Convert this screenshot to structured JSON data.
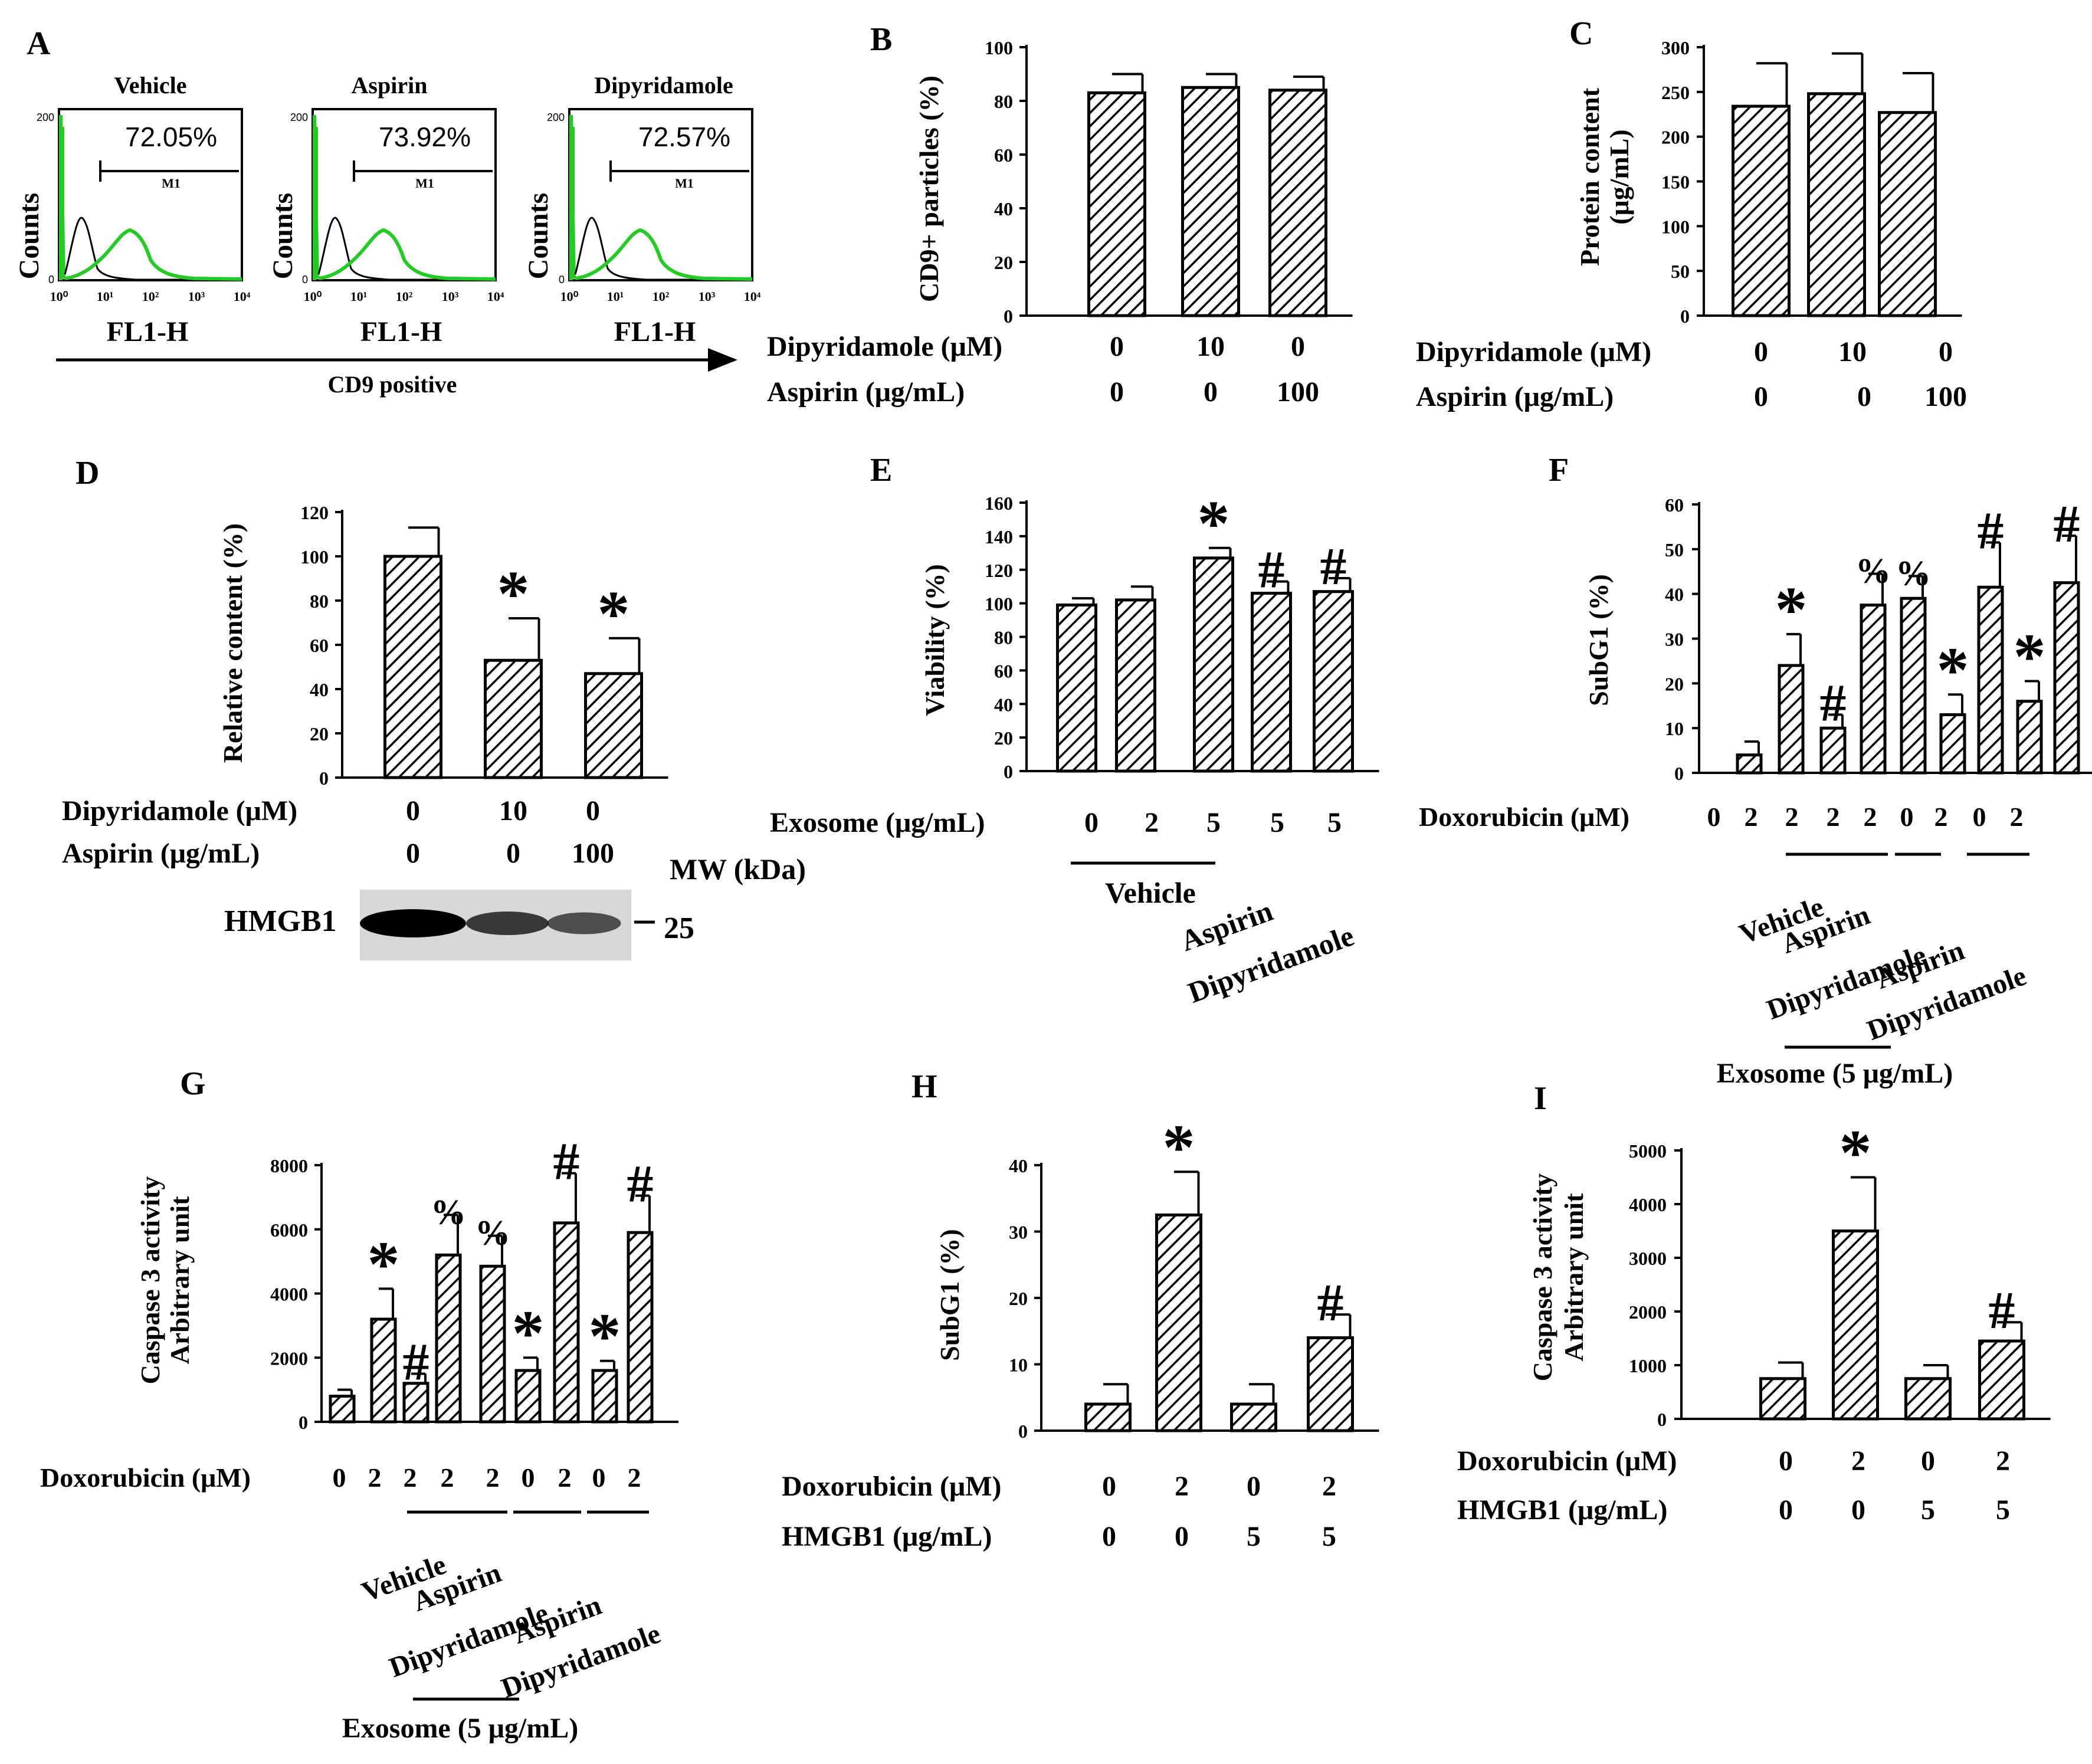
{
  "chart_data": [
    {
      "panel": "A",
      "type": "histogram",
      "xlabel": "FL1-H",
      "ylabel": "Counts",
      "x_ticks": [
        "10⁰",
        "10¹",
        "10²",
        "10³",
        "10⁴"
      ],
      "y_ticks": [
        "0",
        "200"
      ],
      "gate_label": "M1",
      "subpanels": [
        {
          "title": "Vehicle",
          "percent": "72.05%",
          "gate_start": 0.8
        },
        {
          "title": "Aspirin",
          "percent": "73.92%",
          "gate_start": 0.8
        },
        {
          "title": "Dipyridamole",
          "percent": "72.57%",
          "gate_start": 0.8
        }
      ],
      "arrow_label": "CD9 positive",
      "series_colors": [
        "#000000",
        "#22cc22"
      ]
    },
    {
      "panel": "B",
      "type": "bar",
      "ylabel": "CD9+ particles (%)",
      "ylim": [
        0,
        100
      ],
      "y_ticks": [
        "0",
        "20",
        "40",
        "60",
        "80",
        "100"
      ],
      "values": [
        83,
        85,
        84
      ],
      "errors": [
        7,
        5,
        5
      ],
      "annotations": [
        "",
        "",
        ""
      ],
      "conditions": [
        {
          "label": "Dipyridamole (μM)",
          "values": [
            "0",
            "10",
            "0"
          ]
        },
        {
          "label": "Aspirin (μg/mL)",
          "values": [
            "0",
            "0",
            "100"
          ]
        }
      ]
    },
    {
      "panel": "C",
      "type": "bar",
      "ylabel": [
        "Protein content",
        "(μg/mL)"
      ],
      "ylim": [
        0,
        300
      ],
      "y_ticks": [
        "0",
        "50",
        "100",
        "150",
        "200",
        "250",
        "300"
      ],
      "values": [
        234,
        248,
        227
      ],
      "errors": [
        48,
        45,
        44
      ],
      "annotations": [
        "",
        "",
        ""
      ],
      "conditions": [
        {
          "label": "Dipyridamole (μM)",
          "values": [
            "0",
            "10",
            "0"
          ]
        },
        {
          "label": "Aspirin (μg/mL)",
          "values": [
            "0",
            "0",
            "100"
          ]
        }
      ]
    },
    {
      "panel": "D",
      "type": "bar",
      "ylabel": "Relative content (%)",
      "ylim": [
        0,
        120
      ],
      "y_ticks": [
        "0",
        "20",
        "40",
        "60",
        "80",
        "100",
        "120"
      ],
      "values": [
        100,
        53,
        47
      ],
      "errors": [
        13,
        19,
        16
      ],
      "annotations": [
        "",
        "*",
        "*"
      ],
      "conditions": [
        {
          "label": "Dipyridamole (μM)",
          "values": [
            "0",
            "10",
            "0"
          ]
        },
        {
          "label": "Aspirin (μg/mL)",
          "values": [
            "0",
            "0",
            "100"
          ]
        }
      ],
      "blot": {
        "label": "HMGB1",
        "mw_header": "MW (kDa)",
        "mw_marker": "25",
        "band_intensity": [
          1.0,
          0.6,
          0.45
        ]
      }
    },
    {
      "panel": "E",
      "type": "bar",
      "ylabel": "Viability (%)",
      "ylim": [
        0,
        160
      ],
      "y_ticks": [
        "0",
        "20",
        "40",
        "60",
        "80",
        "100",
        "120",
        "140",
        "160"
      ],
      "values": [
        99,
        102,
        127,
        106,
        107
      ],
      "errors": [
        4,
        8,
        6,
        7,
        8
      ],
      "annotations": [
        "",
        "",
        "*",
        "#",
        "#"
      ],
      "conditions": [
        {
          "label": "Exosome (μg/mL)",
          "values": [
            "0",
            "2",
            "5",
            "5",
            "5"
          ]
        }
      ],
      "group_labels": [
        "Vehicle",
        "Aspirin",
        "Dipyridamole"
      ]
    },
    {
      "panel": "F",
      "type": "bar",
      "ylabel": "SubG1 (%)",
      "ylim": [
        0,
        60
      ],
      "y_ticks": [
        "0",
        "10",
        "20",
        "30",
        "40",
        "50",
        "60"
      ],
      "values": [
        4,
        24,
        10,
        37.5,
        39,
        13,
        41.5,
        16,
        42.5
      ],
      "errors": [
        3,
        7,
        3,
        7,
        5,
        4.5,
        10,
        4.5,
        10.5
      ],
      "annotations": [
        "",
        "*",
        "#",
        "%",
        "%",
        "*",
        "#",
        "*",
        "#"
      ],
      "conditions": [
        {
          "label": "Doxorubicin (μM)",
          "values": [
            "0",
            "2",
            "2",
            "2",
            "2",
            "0",
            "2",
            "0",
            "2"
          ]
        }
      ],
      "group_labels": [
        "Vehicle",
        "Aspirin",
        "Dipyridamole",
        "Aspirin",
        "Dipyridamole"
      ],
      "exosome_label": "Exosome (5 μg/mL)"
    },
    {
      "panel": "G",
      "type": "bar",
      "ylabel": [
        "Caspase 3 activity",
        "Arbitrary unit"
      ],
      "ylim": [
        0,
        8000
      ],
      "y_ticks": [
        "0",
        "2000",
        "4000",
        "6000",
        "8000"
      ],
      "values": [
        800,
        3200,
        1200,
        5200,
        4850,
        1600,
        6200,
        1600,
        5900
      ],
      "errors": [
        200,
        950,
        300,
        1250,
        950,
        400,
        1550,
        300,
        1150
      ],
      "annotations": [
        "",
        "*",
        "#",
        "%",
        "%",
        "*",
        "#",
        "*",
        "#"
      ],
      "conditions": [
        {
          "label": "Doxorubicin (μM)",
          "values": [
            "0",
            "2",
            "2",
            "2",
            "2",
            "0",
            "2",
            "0",
            "2"
          ]
        }
      ],
      "group_labels": [
        "Vehicle",
        "Aspirin",
        "Dipyridamole",
        "Aspirin",
        "Dipyridamole"
      ],
      "exosome_label": "Exosome (5 μg/mL)"
    },
    {
      "panel": "H",
      "type": "bar",
      "ylabel": "SubG1 (%)",
      "ylim": [
        0,
        40
      ],
      "y_ticks": [
        "0",
        "10",
        "20",
        "30",
        "40"
      ],
      "values": [
        4,
        32.5,
        4,
        14
      ],
      "errors": [
        3,
        6.5,
        3,
        3.5
      ],
      "annotations": [
        "",
        "*",
        "",
        "#"
      ],
      "conditions": [
        {
          "label": "Doxorubicin (μM)",
          "values": [
            "0",
            "2",
            "0",
            "2"
          ]
        },
        {
          "label": "HMGB1 (μg/mL)",
          "values": [
            "0",
            "0",
            "5",
            "5"
          ]
        }
      ]
    },
    {
      "panel": "I",
      "type": "bar",
      "ylabel": [
        "Caspase 3 activity",
        "Arbitrary unit"
      ],
      "ylim": [
        0,
        5000
      ],
      "y_ticks": [
        "0",
        "1000",
        "2000",
        "3000",
        "4000",
        "5000"
      ],
      "values": [
        750,
        3500,
        750,
        1450
      ],
      "errors": [
        300,
        1000,
        250,
        350
      ],
      "annotations": [
        "",
        "*",
        "",
        "#"
      ],
      "conditions": [
        {
          "label": "Doxorubicin (μM)",
          "values": [
            "0",
            "2",
            "0",
            "2"
          ]
        },
        {
          "label": "HMGB1  (μg/mL)",
          "values": [
            "0",
            "0",
            "5",
            "5"
          ]
        }
      ]
    }
  ]
}
